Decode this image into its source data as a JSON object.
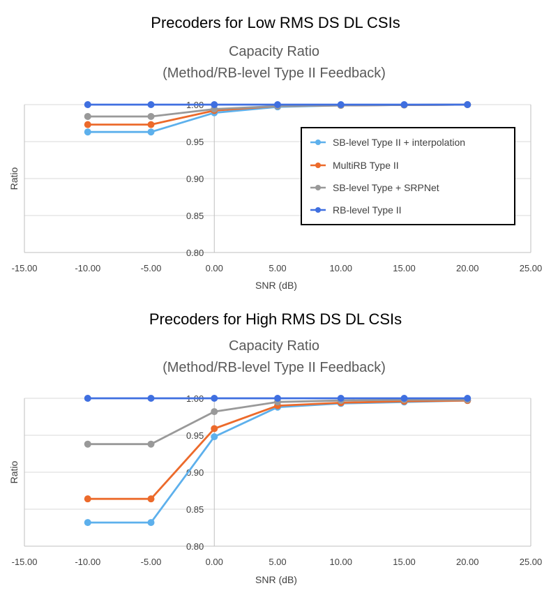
{
  "colors": {
    "sb_interp": "#5db0ec",
    "multirb": "#ec6a2b",
    "srpnet": "#999999",
    "rb_level": "#3f6fe0"
  },
  "chart_data": [
    {
      "type": "line",
      "suptitle": "Precoders for Low RMS DS DL CSIs",
      "title_line1": "Capacity Ratio",
      "title_line2": "(Method/RB-level Type II Feedback)",
      "xlabel": "SNR (dB)",
      "ylabel": "Ratio",
      "xlim": [
        -15,
        25
      ],
      "ylim": [
        0.8,
        1.0
      ],
      "xticks": [
        -15,
        -10,
        -5,
        0,
        5,
        10,
        15,
        20,
        25
      ],
      "xtick_labels": [
        "-15.00",
        "-10.00",
        "-5.00",
        "0.00",
        "5.00",
        "10.00",
        "15.00",
        "20.00",
        "25.00"
      ],
      "yticks": [
        0.8,
        0.85,
        0.9,
        0.95,
        1.0
      ],
      "ytick_labels": [
        "0.80",
        "0.85",
        "0.90",
        "0.95",
        "1.00"
      ],
      "legend": "inside-right",
      "x": [
        -10,
        -5,
        0,
        5,
        10,
        15,
        20
      ],
      "series": [
        {
          "name": "SB-level Type II + interpolation",
          "color": "#5db0ec",
          "values": [
            0.963,
            0.963,
            0.989,
            0.997,
            0.999,
            0.9995,
            1.0
          ]
        },
        {
          "name": "MultiRB Type II",
          "color": "#ec6a2b",
          "values": [
            0.973,
            0.973,
            0.992,
            0.998,
            0.999,
            0.9995,
            1.0
          ]
        },
        {
          "name": "SB-level Type + SRPNet",
          "color": "#999999",
          "values": [
            0.984,
            0.984,
            0.994,
            0.998,
            0.999,
            0.9995,
            1.0
          ]
        },
        {
          "name": "RB-level Type II",
          "color": "#3f6fe0",
          "values": [
            1.0,
            1.0,
            1.0,
            1.0,
            1.0,
            1.0,
            1.0
          ]
        }
      ]
    },
    {
      "type": "line",
      "suptitle": "Precoders for High RMS DS DL CSIs",
      "title_line1": "Capacity Ratio",
      "title_line2": "(Method/RB-level Type II Feedback)",
      "xlabel": "SNR (dB)",
      "ylabel": "Ratio",
      "xlim": [
        -15,
        25
      ],
      "ylim": [
        0.8,
        1.0
      ],
      "xticks": [
        -15,
        -10,
        -5,
        0,
        5,
        10,
        15,
        20,
        25
      ],
      "xtick_labels": [
        "-15.00",
        "-10.00",
        "-5.00",
        "0.00",
        "5.00",
        "10.00",
        "15.00",
        "20.00",
        "25.00"
      ],
      "yticks": [
        0.8,
        0.85,
        0.9,
        0.95,
        1.0
      ],
      "ytick_labels": [
        "0.80",
        "0.85",
        "0.90",
        "0.95",
        "1.00"
      ],
      "legend": "none",
      "x": [
        -10,
        -5,
        0,
        5,
        10,
        15,
        20
      ],
      "series": [
        {
          "name": "SB-level Type II + interpolation",
          "color": "#5db0ec",
          "values": [
            0.832,
            0.832,
            0.948,
            0.988,
            0.993,
            0.995,
            0.997
          ]
        },
        {
          "name": "MultiRB Type II",
          "color": "#ec6a2b",
          "values": [
            0.864,
            0.864,
            0.959,
            0.99,
            0.994,
            0.996,
            0.997
          ]
        },
        {
          "name": "SB-level Type + SRPNet",
          "color": "#999999",
          "values": [
            0.938,
            0.938,
            0.982,
            0.995,
            0.997,
            0.998,
            0.998
          ]
        },
        {
          "name": "RB-level Type II",
          "color": "#3f6fe0",
          "values": [
            1.0,
            1.0,
            1.0,
            1.0,
            1.0,
            1.0,
            1.0
          ]
        }
      ]
    }
  ]
}
